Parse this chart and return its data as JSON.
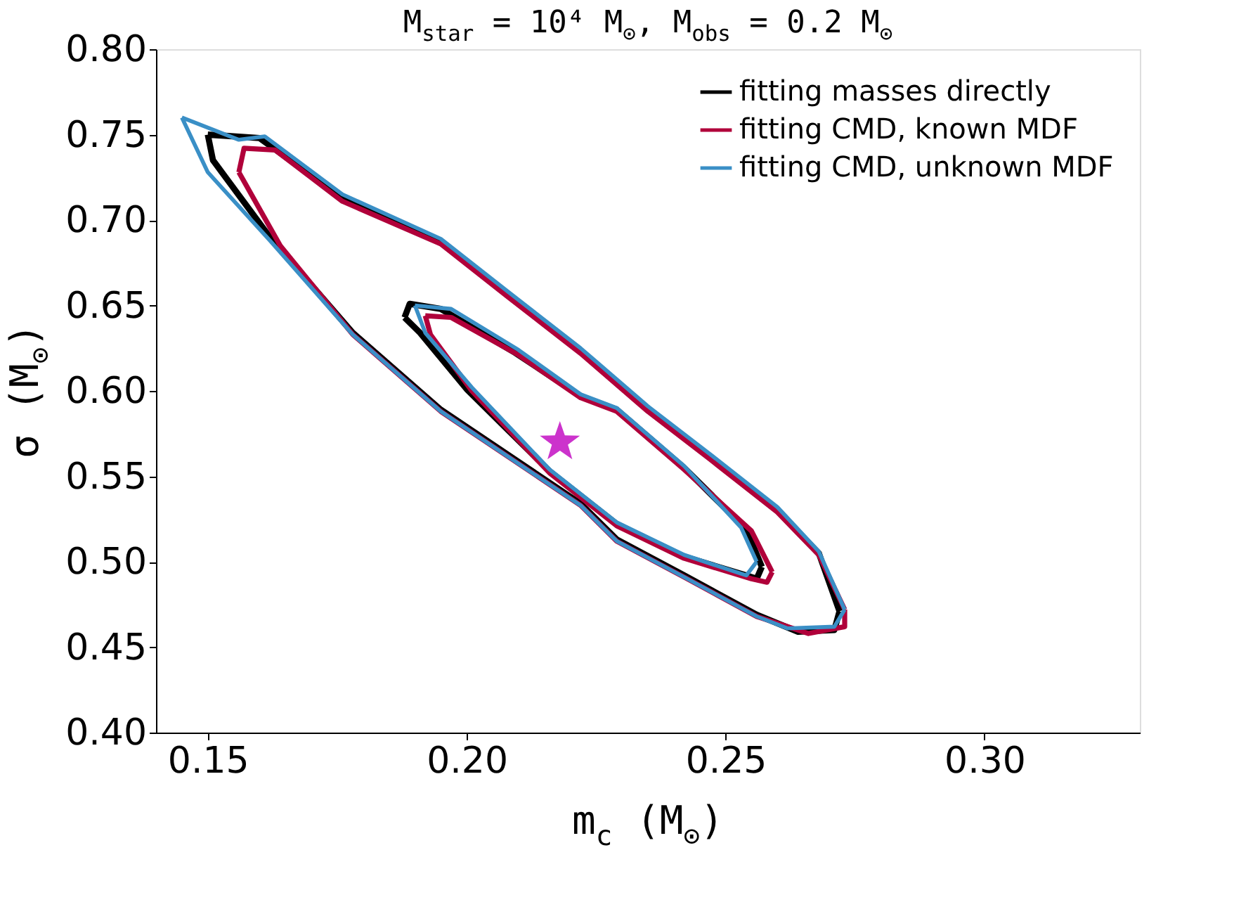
{
  "chart_data": {
    "type": "line",
    "title": "M$_{star}$ = 10⁴ M$_{⊙}$, M$_{obs}$ = 0.2 M$_{⊙}$",
    "xlabel": "m$_{c}$ (M$_{⊙}$)",
    "ylabel": "σ (M$_{⊙}$)",
    "xlim": [
      0.14,
      0.33
    ],
    "xticks": [
      0.15,
      {
        "value": 0.2,
        "label": "0.20"
      },
      0.25,
      {
        "value": 0.3,
        "label": "0.30"
      }
    ],
    "ylim": [
      0.4,
      0.8
    ],
    "yticks": [
      {
        "value": 0.4,
        "label": "0.40"
      },
      0.45,
      {
        "value": 0.5,
        "label": "0.50"
      },
      0.55,
      {
        "value": 0.6,
        "label": "0.60"
      },
      0.65,
      {
        "value": 0.7,
        "label": "0.70"
      },
      0.75,
      {
        "value": 0.8,
        "label": "0.80"
      }
    ],
    "grid": false,
    "legend": "top right",
    "marker": "none",
    "line_style": "solid",
    "series": [
      {
        "name": "fitting masses directly",
        "color": "#000000",
        "x": [
          0.15,
          0.16,
          0.176,
          0.195,
          0.208,
          0.222,
          0.235,
          0.247,
          0.26,
          0.268,
          0.272,
          null,
          0.272,
          0.271,
          0.264,
          0.256,
          0.242,
          0.229,
          0.222,
          0.195,
          0.178,
          0.162,
          0.151,
          0.15
        ],
        "values": [
          0.75,
          0.748,
          0.713,
          0.687,
          0.656,
          0.623,
          0.589,
          0.561,
          0.53,
          0.505,
          0.471,
          null,
          0.471,
          0.46,
          0.459,
          0.469,
          0.492,
          0.513,
          0.534,
          0.589,
          0.634,
          0.69,
          0.735,
          0.75
        ]
      },
      {
        "color": "#000000",
        "x": [
          0.188,
          0.189,
          0.195,
          0.209,
          0.222,
          0.229,
          0.242,
          0.254,
          0.257,
          null,
          0.257,
          0.256,
          0.254,
          0.242,
          0.229,
          0.216,
          0.2,
          0.191,
          0.188
        ],
        "values": [
          0.643,
          0.651,
          0.648,
          0.623,
          0.597,
          0.589,
          0.555,
          0.519,
          0.497,
          null,
          0.497,
          0.49,
          0.492,
          0.503,
          0.522,
          0.553,
          0.601,
          0.634,
          0.643
        ]
      },
      {
        "name": "fitting CMD, known MDF",
        "color": "#b0003a",
        "x": [
          0.156,
          0.157,
          0.163,
          0.176,
          0.195,
          0.208,
          0.222,
          0.235,
          0.247,
          0.26,
          0.268,
          0.273,
          null,
          0.273,
          0.273,
          0.266,
          0.256,
          0.242,
          0.229,
          0.222,
          0.195,
          0.178,
          0.164,
          0.156
        ],
        "values": [
          0.728,
          0.742,
          0.741,
          0.711,
          0.686,
          0.655,
          0.622,
          0.588,
          0.56,
          0.529,
          0.504,
          0.472,
          null,
          0.472,
          0.462,
          0.458,
          0.468,
          0.491,
          0.512,
          0.533,
          0.588,
          0.633,
          0.685,
          0.728
        ]
      },
      {
        "color": "#b0003a",
        "x": [
          0.192,
          0.197,
          0.21,
          0.222,
          0.229,
          0.242,
          0.255,
          0.259,
          null,
          0.259,
          0.258,
          0.255,
          0.242,
          0.229,
          0.216,
          0.201,
          0.193,
          0.192
        ],
        "values": [
          0.644,
          0.643,
          0.621,
          0.596,
          0.588,
          0.554,
          0.518,
          0.494,
          null,
          0.494,
          0.488,
          0.49,
          0.502,
          0.521,
          0.552,
          0.6,
          0.633,
          0.644
        ]
      },
      {
        "name": "fitting CMD, unknown MDF",
        "color": "#3a8fc6",
        "x": [
          0.145,
          0.156,
          0.161,
          0.176,
          0.195,
          0.208,
          0.222,
          0.235,
          0.247,
          0.26,
          0.268,
          0.273,
          null,
          0.273,
          0.271,
          0.262,
          0.256,
          0.242,
          0.229,
          0.222,
          0.195,
          0.178,
          0.162,
          0.15,
          0.145
        ],
        "values": [
          0.76,
          0.747,
          0.749,
          0.715,
          0.689,
          0.658,
          0.625,
          0.591,
          0.563,
          0.532,
          0.506,
          0.472,
          null,
          0.472,
          0.462,
          0.461,
          0.468,
          0.491,
          0.512,
          0.533,
          0.588,
          0.633,
          0.688,
          0.728,
          0.76
        ]
      },
      {
        "color": "#3a8fc6",
        "x": [
          0.19,
          0.197,
          0.21,
          0.222,
          0.229,
          0.242,
          0.253,
          0.256,
          null,
          0.256,
          0.254,
          0.242,
          0.229,
          0.216,
          0.201,
          0.192,
          0.19
        ],
        "values": [
          0.65,
          0.648,
          0.624,
          0.598,
          0.59,
          0.556,
          0.52,
          0.5,
          null,
          0.5,
          0.492,
          0.504,
          0.523,
          0.554,
          0.602,
          0.634,
          0.65
        ]
      },
      {
        "type": "scatter",
        "marker": "star",
        "color": "#cc33cc",
        "x": [
          0.218
        ],
        "values": [
          0.57
        ]
      }
    ]
  }
}
